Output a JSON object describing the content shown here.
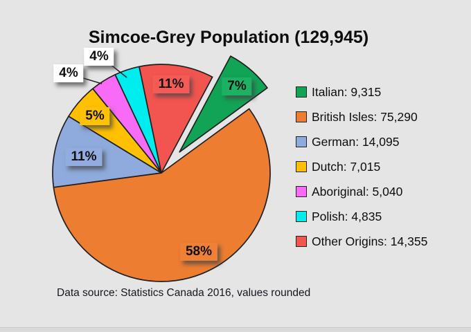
{
  "page": {
    "title": "Simcoe-Grey Population (129,945)",
    "footer": "Data source: Statistics Canada 2016, values rounded"
  },
  "chart_data": {
    "type": "pie",
    "title": "Simcoe-Grey Population (129,945)",
    "total": 129945,
    "start_angle_deg": 28,
    "legend_position": "right",
    "source_note": "Data source: Statistics Canada 2016, values rounded",
    "background_color": "#e5e5e6",
    "slices": [
      {
        "name": "Italian",
        "value": 9315,
        "percent": 7,
        "pct_label": "7%",
        "legend_label": "Italian: 9,315",
        "color": "#12A456",
        "label_bg": "#1DB163",
        "exploded": true
      },
      {
        "name": "British Isles",
        "value": 75290,
        "percent": 58,
        "pct_label": "58%",
        "legend_label": "British Isles: 75,290",
        "color": "#ED7D31",
        "label_bg": "#EE8038",
        "exploded": false
      },
      {
        "name": "German",
        "value": 14095,
        "percent": 11,
        "pct_label": "11%",
        "legend_label": "German: 14,095",
        "color": "#8FAADC",
        "label_bg": "#93ACDF",
        "exploded": false
      },
      {
        "name": "Dutch",
        "value": 7015,
        "percent": 5,
        "pct_label": "5%",
        "legend_label": "Dutch: 7,015",
        "color": "#FFC000",
        "label_bg": "#FEC103",
        "exploded": false
      },
      {
        "name": "Aboriginal",
        "value": 5040,
        "percent": 4,
        "pct_label": "4%",
        "legend_label": "Aboriginal: 5,040",
        "color": "#F76BF7",
        "label_bg": "#FFFFFF",
        "exploded": false
      },
      {
        "name": "Polish",
        "value": 4835,
        "percent": 4,
        "pct_label": "4%",
        "legend_label": "Polish: 4,835",
        "color": "#00EDF0",
        "label_bg": "#FFFFFF",
        "exploded": false
      },
      {
        "name": "Other Origins",
        "value": 14355,
        "percent": 11,
        "pct_label": "11%",
        "legend_label": "Other Origins: 14,355",
        "color": "#F25450",
        "label_bg": "#F45B57",
        "exploded": false
      }
    ]
  }
}
